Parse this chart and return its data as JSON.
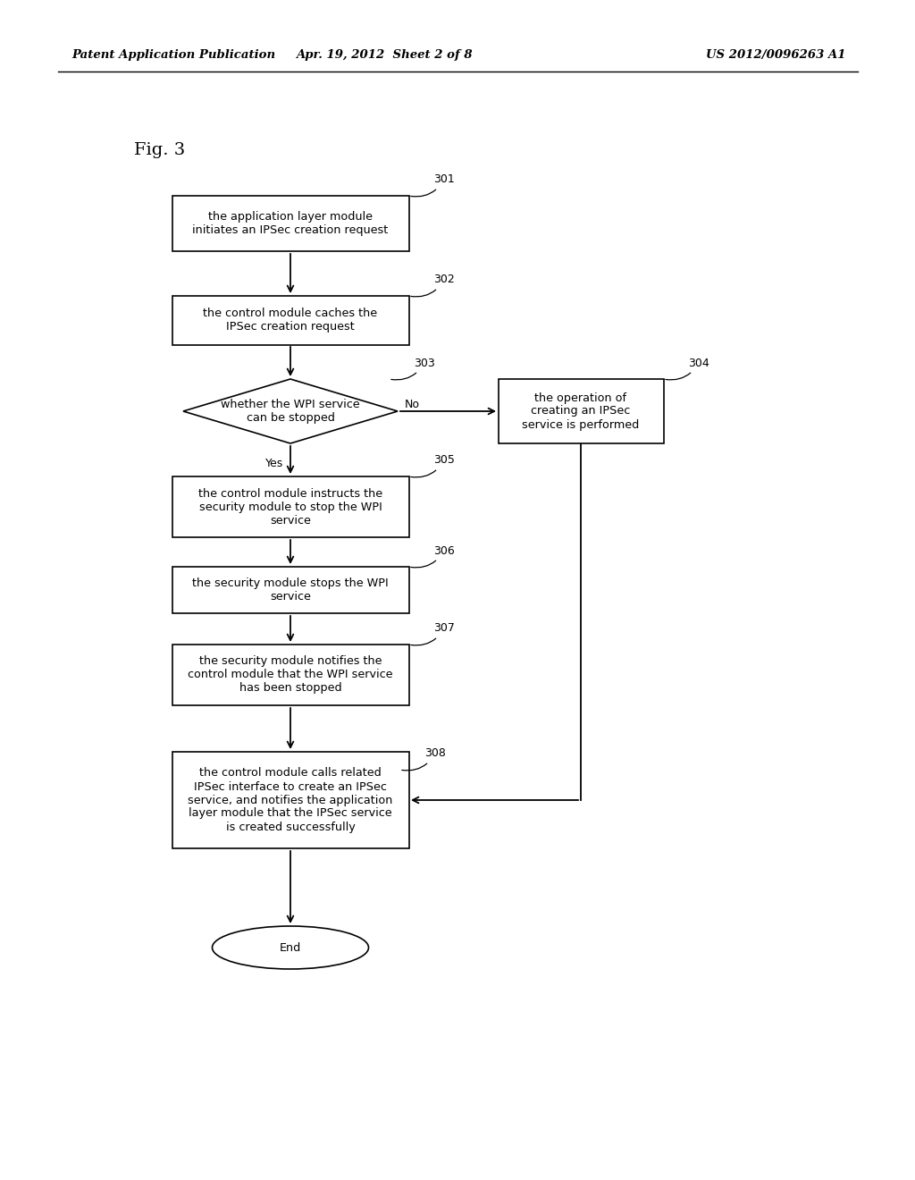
{
  "header_left": "Patent Application Publication",
  "header_center": "Apr. 19, 2012  Sheet 2 of 8",
  "header_right": "US 2012/0096263 A1",
  "fig_label": "Fig. 3",
  "bg_color": "#ffffff",
  "box301_text": "the application layer module\ninitiates an IPSec creation request",
  "box302_text": "the control module caches the\nIPSec creation request",
  "box303_text": "whether the WPI service\ncan be stopped",
  "box304_text": "the operation of\ncreating an IPSec\nservice is performed",
  "box305_text": "the control module instructs the\nsecurity module to stop the WPI\nservice",
  "box306_text": "the security module stops the WPI\nservice",
  "box307_text": "the security module notifies the\ncontrol module that the WPI service\nhas been stopped",
  "box308_text": "the control module calls related\nIPSec interface to create an IPSec\nservice, and notifies the application\nlayer module that the IPSec service\nis created successfully",
  "end_text": "End",
  "ref301": "301",
  "ref302": "302",
  "ref303": "303",
  "ref304": "304",
  "ref305": "305",
  "ref306": "306",
  "ref307": "307",
  "ref308": "308"
}
